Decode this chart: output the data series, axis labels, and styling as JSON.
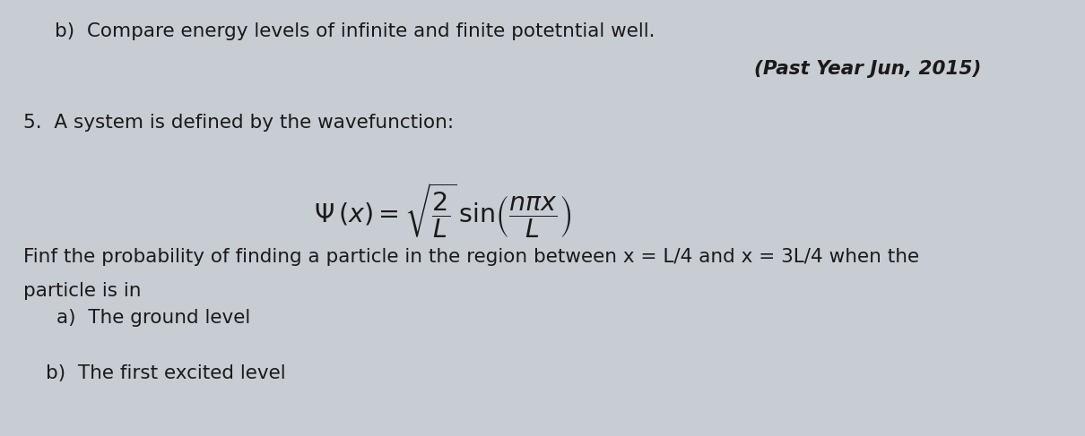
{
  "bg_color": "#c8cdd4",
  "text_color": "#1a1a1a",
  "title_b": "b)  Compare energy levels of infinite and finite potetntial well.",
  "past_year": "(Past Year Jun, 2015)",
  "line5": "5.  A system is defined by the wavefunction:",
  "line_finf": "Finf the probability of finding a particle in the region between x = L/4 and x = 3L/4 when the",
  "line_particle": "particle is in",
  "line_a": "a)  The ground level",
  "line_b": "b)  The first excited level",
  "figsize": [
    12.1,
    4.87
  ],
  "dpi": 100
}
